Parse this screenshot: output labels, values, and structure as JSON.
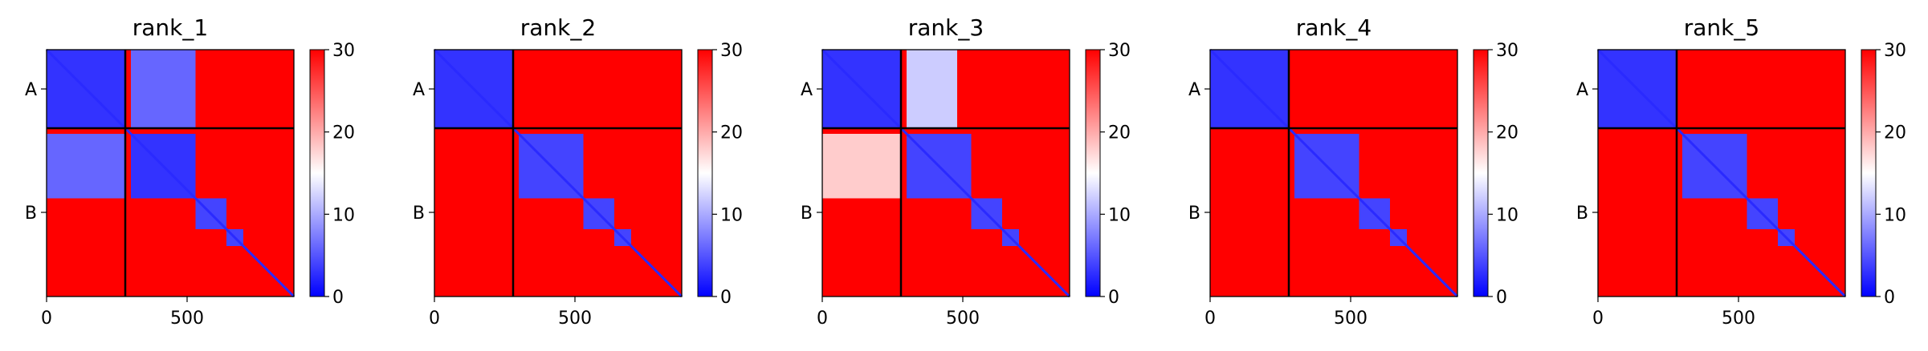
{
  "chart_data": [
    {
      "type": "heatmap",
      "title": "rank_1",
      "xlabel": "",
      "ylabel": "",
      "xlim": [
        0,
        880
      ],
      "x_ticks": [
        0,
        500
      ],
      "y_tick_labels": [
        "A",
        "B"
      ],
      "chain_boundary": 280,
      "colorbar": {
        "min": 0,
        "max": 30,
        "ticks": [
          0,
          10,
          20,
          30
        ],
        "colors": [
          "#0000ff",
          "#ffffff",
          "#ff0000"
        ]
      },
      "blocks": [
        {
          "x": [
            0,
            280
          ],
          "y": [
            0,
            280
          ],
          "value": 3
        },
        {
          "x": [
            300,
            530
          ],
          "y": [
            0,
            280
          ],
          "value": 6
        },
        {
          "x": [
            0,
            280
          ],
          "y": [
            300,
            530
          ],
          "value": 6
        },
        {
          "x": [
            300,
            530
          ],
          "y": [
            300,
            530
          ],
          "value": 3
        },
        {
          "x": [
            530,
            640
          ],
          "y": [
            530,
            640
          ],
          "value": 4
        },
        {
          "x": [
            640,
            700
          ],
          "y": [
            640,
            700
          ],
          "value": 4
        }
      ]
    },
    {
      "type": "heatmap",
      "title": "rank_2",
      "xlabel": "",
      "ylabel": "",
      "xlim": [
        0,
        880
      ],
      "x_ticks": [
        0,
        500
      ],
      "y_tick_labels": [
        "A",
        "B"
      ],
      "chain_boundary": 280,
      "colorbar": {
        "min": 0,
        "max": 30,
        "ticks": [
          0,
          10,
          20,
          30
        ],
        "colors": [
          "#0000ff",
          "#ffffff",
          "#ff0000"
        ]
      },
      "blocks": [
        {
          "x": [
            0,
            280
          ],
          "y": [
            0,
            280
          ],
          "value": 3
        },
        {
          "x": [
            300,
            530
          ],
          "y": [
            300,
            530
          ],
          "value": 4
        },
        {
          "x": [
            530,
            640
          ],
          "y": [
            530,
            640
          ],
          "value": 4
        },
        {
          "x": [
            640,
            700
          ],
          "y": [
            640,
            700
          ],
          "value": 4
        }
      ]
    },
    {
      "type": "heatmap",
      "title": "rank_3",
      "xlabel": "",
      "ylabel": "",
      "xlim": [
        0,
        880
      ],
      "x_ticks": [
        0,
        500
      ],
      "y_tick_labels": [
        "A",
        "B"
      ],
      "chain_boundary": 280,
      "colorbar": {
        "min": 0,
        "max": 30,
        "ticks": [
          0,
          10,
          20,
          30
        ],
        "colors": [
          "#0000ff",
          "#ffffff",
          "#ff0000"
        ]
      },
      "blocks": [
        {
          "x": [
            0,
            280
          ],
          "y": [
            0,
            280
          ],
          "value": 3
        },
        {
          "x": [
            300,
            480
          ],
          "y": [
            0,
            280
          ],
          "value": 12
        },
        {
          "x": [
            0,
            280
          ],
          "y": [
            300,
            530
          ],
          "value": 18
        },
        {
          "x": [
            300,
            530
          ],
          "y": [
            300,
            530
          ],
          "value": 4
        },
        {
          "x": [
            530,
            640
          ],
          "y": [
            530,
            640
          ],
          "value": 4
        },
        {
          "x": [
            640,
            700
          ],
          "y": [
            640,
            700
          ],
          "value": 4
        }
      ]
    },
    {
      "type": "heatmap",
      "title": "rank_4",
      "xlabel": "",
      "ylabel": "",
      "xlim": [
        0,
        880
      ],
      "x_ticks": [
        0,
        500
      ],
      "y_tick_labels": [
        "A",
        "B"
      ],
      "chain_boundary": 280,
      "colorbar": {
        "min": 0,
        "max": 30,
        "ticks": [
          0,
          10,
          20,
          30
        ],
        "colors": [
          "#0000ff",
          "#ffffff",
          "#ff0000"
        ]
      },
      "blocks": [
        {
          "x": [
            0,
            280
          ],
          "y": [
            0,
            280
          ],
          "value": 3
        },
        {
          "x": [
            300,
            530
          ],
          "y": [
            300,
            530
          ],
          "value": 4
        },
        {
          "x": [
            530,
            640
          ],
          "y": [
            530,
            640
          ],
          "value": 4
        },
        {
          "x": [
            640,
            700
          ],
          "y": [
            640,
            700
          ],
          "value": 4
        }
      ]
    },
    {
      "type": "heatmap",
      "title": "rank_5",
      "xlabel": "",
      "ylabel": "",
      "xlim": [
        0,
        880
      ],
      "x_ticks": [
        0,
        500
      ],
      "y_tick_labels": [
        "A",
        "B"
      ],
      "chain_boundary": 280,
      "colorbar": {
        "min": 0,
        "max": 30,
        "ticks": [
          0,
          10,
          20,
          30
        ],
        "colors": [
          "#0000ff",
          "#ffffff",
          "#ff0000"
        ]
      },
      "blocks": [
        {
          "x": [
            0,
            280
          ],
          "y": [
            0,
            280
          ],
          "value": 3
        },
        {
          "x": [
            300,
            530
          ],
          "y": [
            300,
            530
          ],
          "value": 4
        },
        {
          "x": [
            530,
            640
          ],
          "y": [
            530,
            640
          ],
          "value": 4
        },
        {
          "x": [
            640,
            700
          ],
          "y": [
            640,
            700
          ],
          "value": 4
        }
      ]
    }
  ]
}
